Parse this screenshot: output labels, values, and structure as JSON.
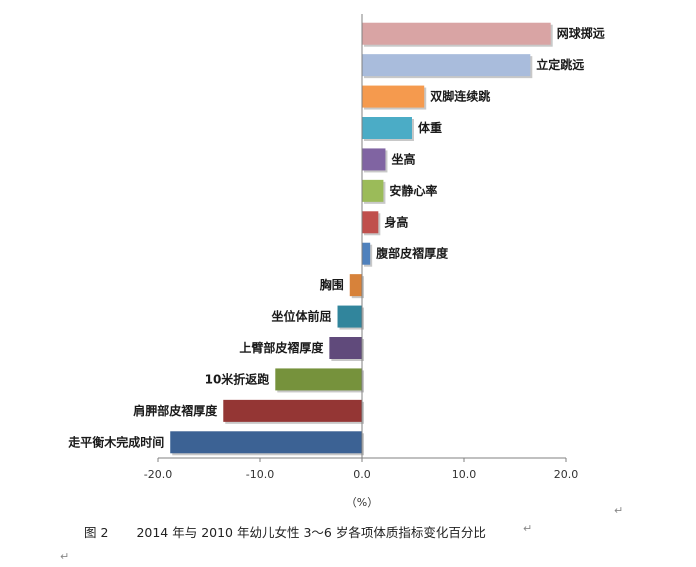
{
  "chart_data": {
    "type": "bar",
    "orientation": "horizontal",
    "categories": [
      "网球掷远",
      "立定跳远",
      "双脚连续跳",
      "体重",
      "坐高",
      "安静心率",
      "身高",
      "腹部皮褶厚度",
      "胸围",
      "坐位体前屈",
      "上臂部皮褶厚度",
      "10米折返跑",
      "肩胛部皮褶厚度",
      "走平衡木完成时间"
    ],
    "values": [
      18.5,
      16.5,
      6.1,
      4.9,
      2.3,
      2.1,
      1.6,
      0.8,
      -1.2,
      -2.4,
      -3.2,
      -8.5,
      -13.6,
      -18.8
    ],
    "colors": [
      "#d9a4a4",
      "#a9bcdc",
      "#f59a4e",
      "#4bacc6",
      "#8064a2",
      "#9bbb59",
      "#c0504d",
      "#4f81bd",
      "#d7823a",
      "#31859c",
      "#604a7b",
      "#76923c",
      "#943634",
      "#3c6294"
    ],
    "xlim": [
      -20,
      20
    ],
    "xticks": [
      "-20.0",
      "-10.0",
      "0.0",
      "10.0",
      "20.0"
    ],
    "xlabel": "（%）",
    "grid": false
  },
  "caption": {
    "figure": "图 2",
    "text": "2014 年与 2010 年幼儿女性 3～6 岁各项体质指标变化百分比"
  }
}
